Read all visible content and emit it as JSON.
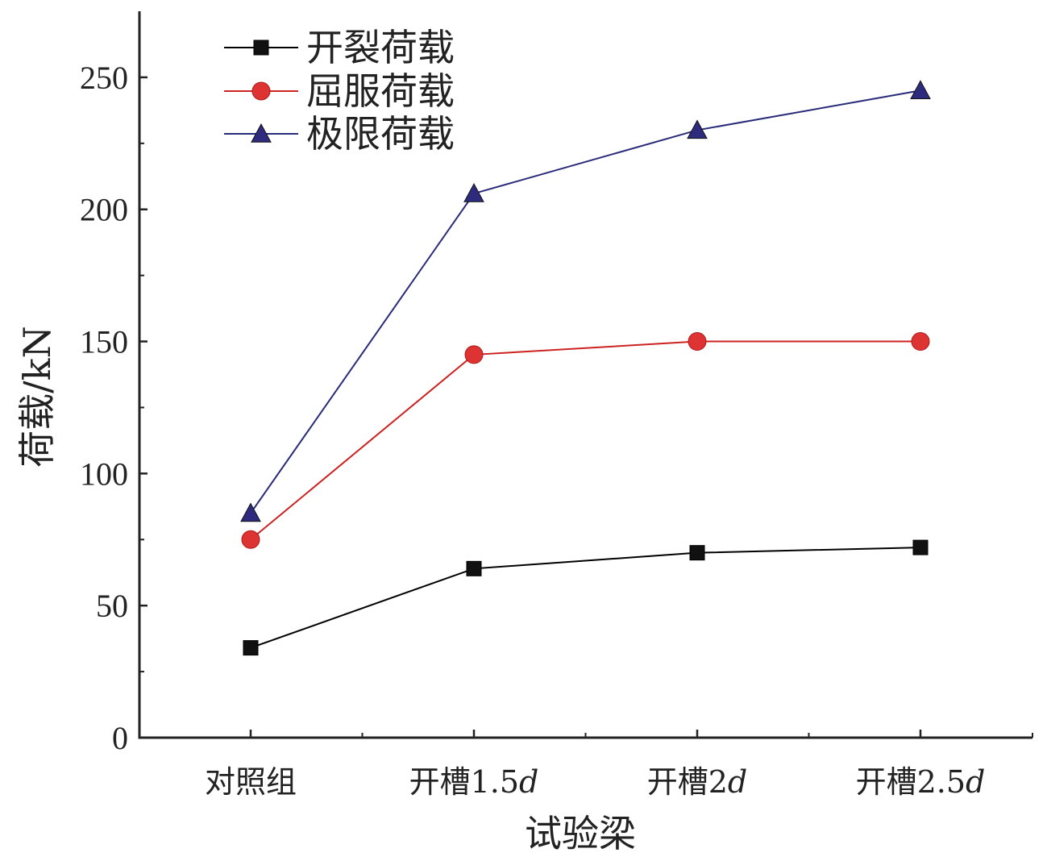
{
  "chart_data": {
    "type": "line",
    "title": "",
    "xlabel": "试验梁",
    "ylabel": "荷载/kN",
    "categories": [
      "对照组",
      "开槽1.5d",
      "开槽2d",
      "开槽2.5d"
    ],
    "categories_display": [
      {
        "main": "对照组",
        "italic": ""
      },
      {
        "main": "开槽1.5",
        "italic": "d"
      },
      {
        "main": "开槽2",
        "italic": "d"
      },
      {
        "main": "开槽2.5",
        "italic": "d"
      }
    ],
    "ylim": [
      0,
      275
    ],
    "yticks": [
      0,
      50,
      100,
      150,
      200,
      250
    ],
    "grid": false,
    "legend_position": "top-left",
    "series": [
      {
        "name": "开裂荷载",
        "marker": "square",
        "color": "#000000",
        "marker_color": "#111111",
        "values": [
          34,
          64,
          70,
          72
        ]
      },
      {
        "name": "屈服荷载",
        "marker": "circle",
        "color": "#cc2222",
        "marker_color": "#dd3333",
        "values": [
          75,
          145,
          150,
          150
        ]
      },
      {
        "name": "极限荷载",
        "marker": "triangle",
        "color": "#2a2a7a",
        "marker_color": "#2e2a7e",
        "values": [
          85,
          206,
          230,
          245
        ]
      }
    ]
  }
}
